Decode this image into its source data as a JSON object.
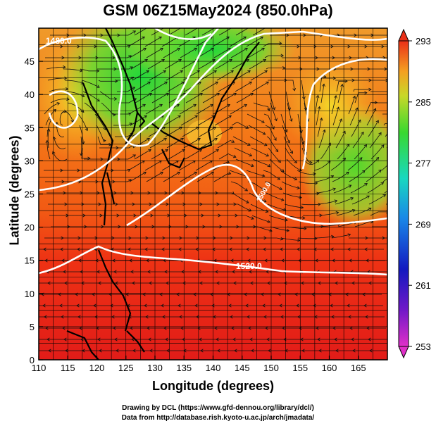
{
  "title": "GSM 06Z15May2024 (850.0hPa)",
  "x_axis": {
    "label": "Longitude (degrees)",
    "min": 110,
    "max": 170,
    "tick_labels": [
      "110",
      "115",
      "120",
      "125",
      "130",
      "135",
      "140",
      "145",
      "150",
      "155",
      "160",
      "165"
    ]
  },
  "y_axis": {
    "label": "Latitude  (degrees)",
    "min": 0,
    "max": 50,
    "tick_labels": [
      "0",
      "5",
      "10",
      "15",
      "20",
      "25",
      "30",
      "35",
      "40",
      "45"
    ]
  },
  "colorbar": {
    "labels": [
      "293",
      "285",
      "277",
      "269",
      "261",
      "253"
    ],
    "min": 253,
    "max": 293
  },
  "contour_labels": [
    "1480.0",
    "1520.0",
    "1500.0"
  ],
  "credits": {
    "line1": "Drawing by DCL (https://www.gfd-dennou.org/library/dcl/)",
    "line2": "Data from http://database.rish.kyoto-u.ac.jp/arch/jmadata/"
  },
  "chart_data": {
    "type": "heatmap",
    "title": "GSM 06Z15May2024 (850.0hPa)",
    "xlabel": "Longitude (degrees)",
    "ylabel": "Latitude  (degrees)",
    "xlim": [
      110,
      170
    ],
    "ylim": [
      0,
      50
    ],
    "colorbar_range": [
      253,
      293
    ],
    "grid": true,
    "contours": [
      {
        "label": "1480.0",
        "lon": 115,
        "lat": 47.5
      },
      {
        "label": "1500.0",
        "lon": 151,
        "lat": 27.5
      },
      {
        "label": "1520.0",
        "lon": 145,
        "lat": 15
      }
    ]
  }
}
